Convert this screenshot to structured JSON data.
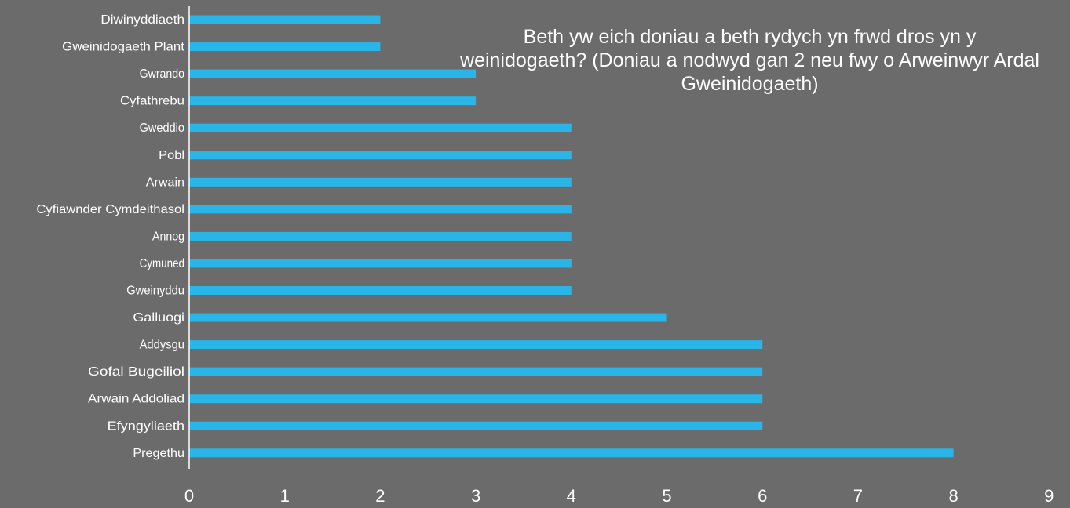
{
  "chart_data": {
    "type": "bar",
    "orientation": "horizontal",
    "title": "Beth yw eich doniau a beth rydych yn frwd dros yn y weinidogaeth? (Doniau a nodwyd gan 2 neu fwy o Arweinwyr Ardal Gweinidogaeth)",
    "categories": [
      "Diwinyddiaeth",
      "Gweinidogaeth Plant",
      "Gwrando",
      "Cyfathrebu",
      "Gweddio",
      "Pobl",
      "Arwain",
      "Cyfiawnder Cymdeithasol",
      "Annog",
      "Cymuned",
      "Gweinyddu",
      "Galluogi",
      "Addysgu",
      "Gofal Bugeiliol",
      "Arwain Addoliad",
      "Efyngyliaeth",
      "Pregethu"
    ],
    "values": [
      2,
      2,
      3,
      3,
      4,
      4,
      4,
      4,
      4,
      4,
      4,
      5,
      6,
      6,
      6,
      6,
      8
    ],
    "xlim": [
      0,
      9
    ],
    "x_ticks": [
      "0",
      "1",
      "2",
      "3",
      "4",
      "5",
      "6",
      "7",
      "8",
      "9"
    ],
    "bar_color": "#29b5e8",
    "background_color": "#6b6b6b",
    "grid": false
  }
}
